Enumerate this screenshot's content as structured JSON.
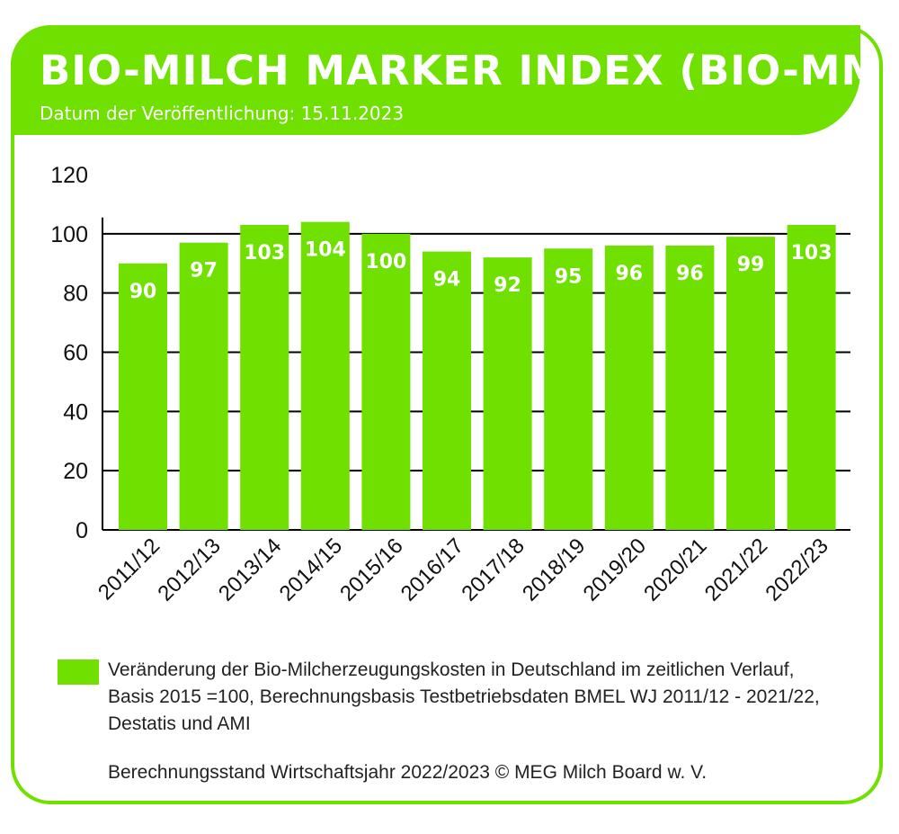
{
  "header": {
    "title": "BIO-MILCH MARKER INDEX (BIO-MMI)",
    "subtitle": "Datum der Veröffentlichung: 15.11.2023"
  },
  "colors": {
    "accent": "#6fe000",
    "grid": "#000000",
    "text": "#222222",
    "bar_label": "#ffffff"
  },
  "chart_data": {
    "type": "bar",
    "categories": [
      "2011/12",
      "2012/13",
      "2013/14",
      "2014/15",
      "2015/16",
      "2016/17",
      "2017/18",
      "2018/19",
      "2019/20",
      "2020/21",
      "2021/22",
      "2022/23"
    ],
    "series": [
      {
        "name": "Veränderung der Bio-Milcherzeugungskosten in Deutschland im zeitlichen Verlauf, Basis 2015 =100, Berechnungsbasis Testbetriebsdaten BMEL WJ 2011/12 - 2021/22, Destatis und AMI",
        "values": [
          90,
          97,
          103,
          104,
          100,
          94,
          92,
          95,
          96,
          96,
          99,
          103
        ]
      }
    ],
    "data_labels": [
      "90",
      "97",
      "103",
      "104",
      "100",
      "94",
      "92",
      "95",
      "96",
      "96",
      "99",
      "103"
    ],
    "yticks": [
      "0",
      "20",
      "40",
      "60",
      "80",
      "100",
      "120"
    ],
    "ylim": [
      0,
      120
    ],
    "grid": true,
    "legend_position": "bottom"
  },
  "legend": {
    "text": "Veränderung der Bio-Milcherzeugungskosten in Deutschland im zeitlichen Verlauf, Basis 2015 =100, Berechnungsbasis Testbetriebsdaten BMEL WJ 2011/12 - 2021/22, Destatis und AMI"
  },
  "footer": {
    "source": "Berechnungsstand Wirtschaftsjahr 2022/2023 © MEG Milch Board w. V."
  }
}
